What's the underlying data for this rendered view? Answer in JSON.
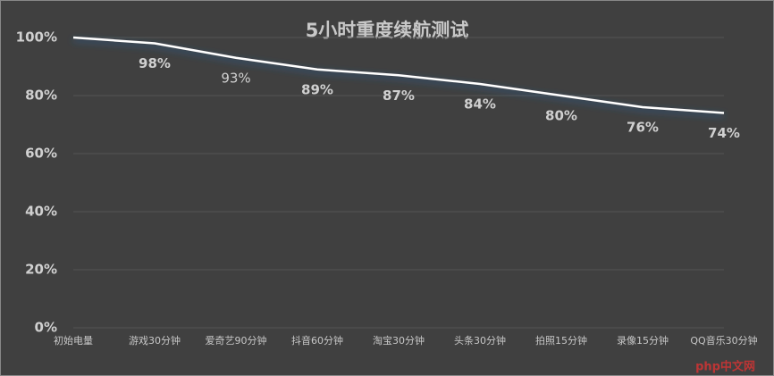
{
  "chart_data": {
    "type": "line",
    "title": "5小时重度续航测试",
    "categories": [
      "初始电量",
      "游戏30分钟",
      "爱奇艺90分钟",
      "抖音60分钟",
      "淘宝30分钟",
      "头条30分钟",
      "拍照15分钟",
      "录像15分钟",
      "QQ音乐30分钟"
    ],
    "values": [
      100,
      98,
      93,
      89,
      87,
      84,
      80,
      76,
      74
    ],
    "value_labels": [
      null,
      "98%",
      "93%",
      "89%",
      "87%",
      "84%",
      "80%",
      "76%",
      "74%"
    ],
    "color": "#ffffff",
    "ylim": [
      0,
      100
    ],
    "yticks": [
      {
        "value": 0,
        "label": "0%"
      },
      {
        "value": 20,
        "label": "20%"
      },
      {
        "value": 40,
        "label": "40%"
      },
      {
        "value": 60,
        "label": "60%"
      },
      {
        "value": 80,
        "label": "80%"
      },
      {
        "value": 100,
        "label": "100%"
      }
    ],
    "grid": true,
    "watermark": "php中文网"
  }
}
